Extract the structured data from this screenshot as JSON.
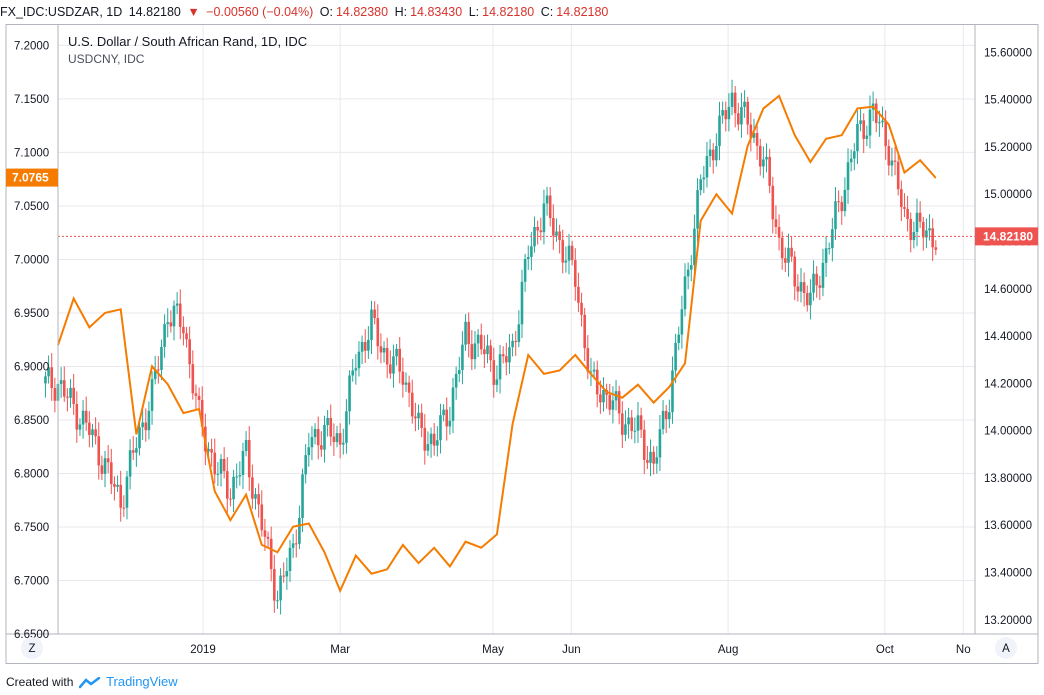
{
  "header": {
    "symbol": "FX_IDC:USDZAR, 1D",
    "last": "14.82180",
    "change": "−0.00560 (−0.04%)",
    "open_label": "O:",
    "open": "14.82380",
    "high_label": "H:",
    "high": "14.83430",
    "low_label": "L:",
    "low": "14.82180",
    "close_label": "C:",
    "close": "14.82180"
  },
  "legend": {
    "title": "U.S. Dollar / South African Rand, 1D, IDC",
    "secondary": "USDCNY, IDC"
  },
  "footer": {
    "created_with": "Created with",
    "brand": "TradingView"
  },
  "buttons": {
    "left_scale": "Z",
    "right_scale": "A"
  },
  "colors": {
    "up": "#26a69a",
    "down": "#ef5350",
    "line": "#f57c00",
    "price_line": "#ef5350",
    "grid": "#e8e9ec"
  },
  "chart_data": {
    "type": "line",
    "title": "U.S. Dollar / South African Rand, 1D, IDC",
    "left_axis": {
      "ylim": [
        6.65,
        7.22
      ],
      "ticks": [
        "6.6500",
        "6.7000",
        "6.7500",
        "6.8000",
        "6.8500",
        "6.9000",
        "6.9500",
        "7.0000",
        "7.0500",
        "7.1000",
        "7.1500",
        "7.2000"
      ],
      "current_label": "7.0765",
      "current_value": 7.0765
    },
    "right_axis": {
      "ylim": [
        13.14,
        15.72
      ],
      "ticks": [
        "13.20000",
        "13.40000",
        "13.60000",
        "13.80000",
        "14.00000",
        "14.20000",
        "14.40000",
        "14.60000",
        "14.80000",
        "15.00000",
        "15.20000",
        "15.40000",
        "15.60000"
      ],
      "current_label": "14.82180",
      "current_value": 14.8218
    },
    "x_labels": [
      {
        "label": "2019",
        "x": 0.25
      },
      {
        "label": "Mar",
        "x": 2.0
      },
      {
        "label": "May",
        "x": 3.95
      },
      {
        "label": "Jun",
        "x": 4.95
      },
      {
        "label": "Aug",
        "x": 6.95
      },
      {
        "label": "Oct",
        "x": 8.95
      },
      {
        "label": "No",
        "x": 9.95
      }
    ],
    "xlim": [
      -1.6,
      10.1
    ],
    "series": [
      {
        "name": "USDCNY, IDC",
        "axis": "left",
        "style": "line",
        "x": [
          -1.6,
          -1.4,
          -1.2,
          -1.0,
          -0.8,
          -0.6,
          -0.4,
          -0.2,
          0.0,
          0.2,
          0.4,
          0.6,
          0.8,
          1.0,
          1.2,
          1.4,
          1.6,
          1.8,
          2.0,
          2.2,
          2.4,
          2.6,
          2.8,
          3.0,
          3.2,
          3.4,
          3.6,
          3.8,
          4.0,
          4.2,
          4.4,
          4.6,
          4.8,
          5.0,
          5.2,
          5.4,
          5.6,
          5.8,
          6.0,
          6.2,
          6.4,
          6.6,
          6.8,
          7.0,
          7.2,
          7.4,
          7.6,
          7.8,
          8.0,
          8.2,
          8.4,
          8.6,
          8.8,
          9.0,
          9.2,
          9.4,
          9.6
        ],
        "values": [
          6.92,
          6.96,
          6.94,
          6.95,
          6.95,
          6.84,
          6.9,
          6.88,
          6.86,
          6.86,
          6.78,
          6.76,
          6.78,
          6.73,
          6.73,
          6.75,
          6.75,
          6.73,
          6.69,
          6.72,
          6.71,
          6.71,
          6.73,
          6.72,
          6.73,
          6.71,
          6.74,
          6.73,
          6.74,
          6.85,
          6.91,
          6.89,
          6.9,
          6.91,
          6.89,
          6.88,
          6.87,
          6.88,
          6.87,
          6.88,
          6.9,
          7.04,
          7.06,
          7.04,
          7.11,
          7.14,
          7.15,
          7.12,
          7.09,
          7.11,
          7.12,
          7.14,
          7.14,
          7.13,
          7.08,
          7.09,
          7.08
        ]
      },
      {
        "name": "USD/ZAR",
        "axis": "right",
        "style": "candles",
        "x": [
          -1.6,
          -1.4,
          -1.2,
          -1.0,
          -0.8,
          -0.6,
          -0.4,
          -0.2,
          0.0,
          0.2,
          0.4,
          0.6,
          0.8,
          1.0,
          1.2,
          1.4,
          1.6,
          1.8,
          2.0,
          2.2,
          2.4,
          2.6,
          2.8,
          3.0,
          3.2,
          3.4,
          3.6,
          3.8,
          4.0,
          4.2,
          4.4,
          4.6,
          4.8,
          5.0,
          5.2,
          5.4,
          5.6,
          5.8,
          6.0,
          6.2,
          6.4,
          6.6,
          6.8,
          7.0,
          7.2,
          7.4,
          7.6,
          7.8,
          8.0,
          8.2,
          8.4,
          8.6,
          8.8,
          9.0,
          9.2,
          9.4,
          9.6
        ],
        "values": [
          14.2,
          14.1,
          14.0,
          13.85,
          13.7,
          13.95,
          14.15,
          14.5,
          14.45,
          14.05,
          13.85,
          13.75,
          13.9,
          13.6,
          13.3,
          13.5,
          13.95,
          14.0,
          13.95,
          14.3,
          14.45,
          14.3,
          14.25,
          14.0,
          13.95,
          14.1,
          14.4,
          14.35,
          14.25,
          14.35,
          14.75,
          14.95,
          14.8,
          14.65,
          14.2,
          14.15,
          14.05,
          14.0,
          13.85,
          14.15,
          14.6,
          15.05,
          15.25,
          15.4,
          15.3,
          15.15,
          14.8,
          14.65,
          14.55,
          14.75,
          15.0,
          15.25,
          15.35,
          15.2,
          14.9,
          14.85,
          14.82
        ]
      }
    ]
  }
}
